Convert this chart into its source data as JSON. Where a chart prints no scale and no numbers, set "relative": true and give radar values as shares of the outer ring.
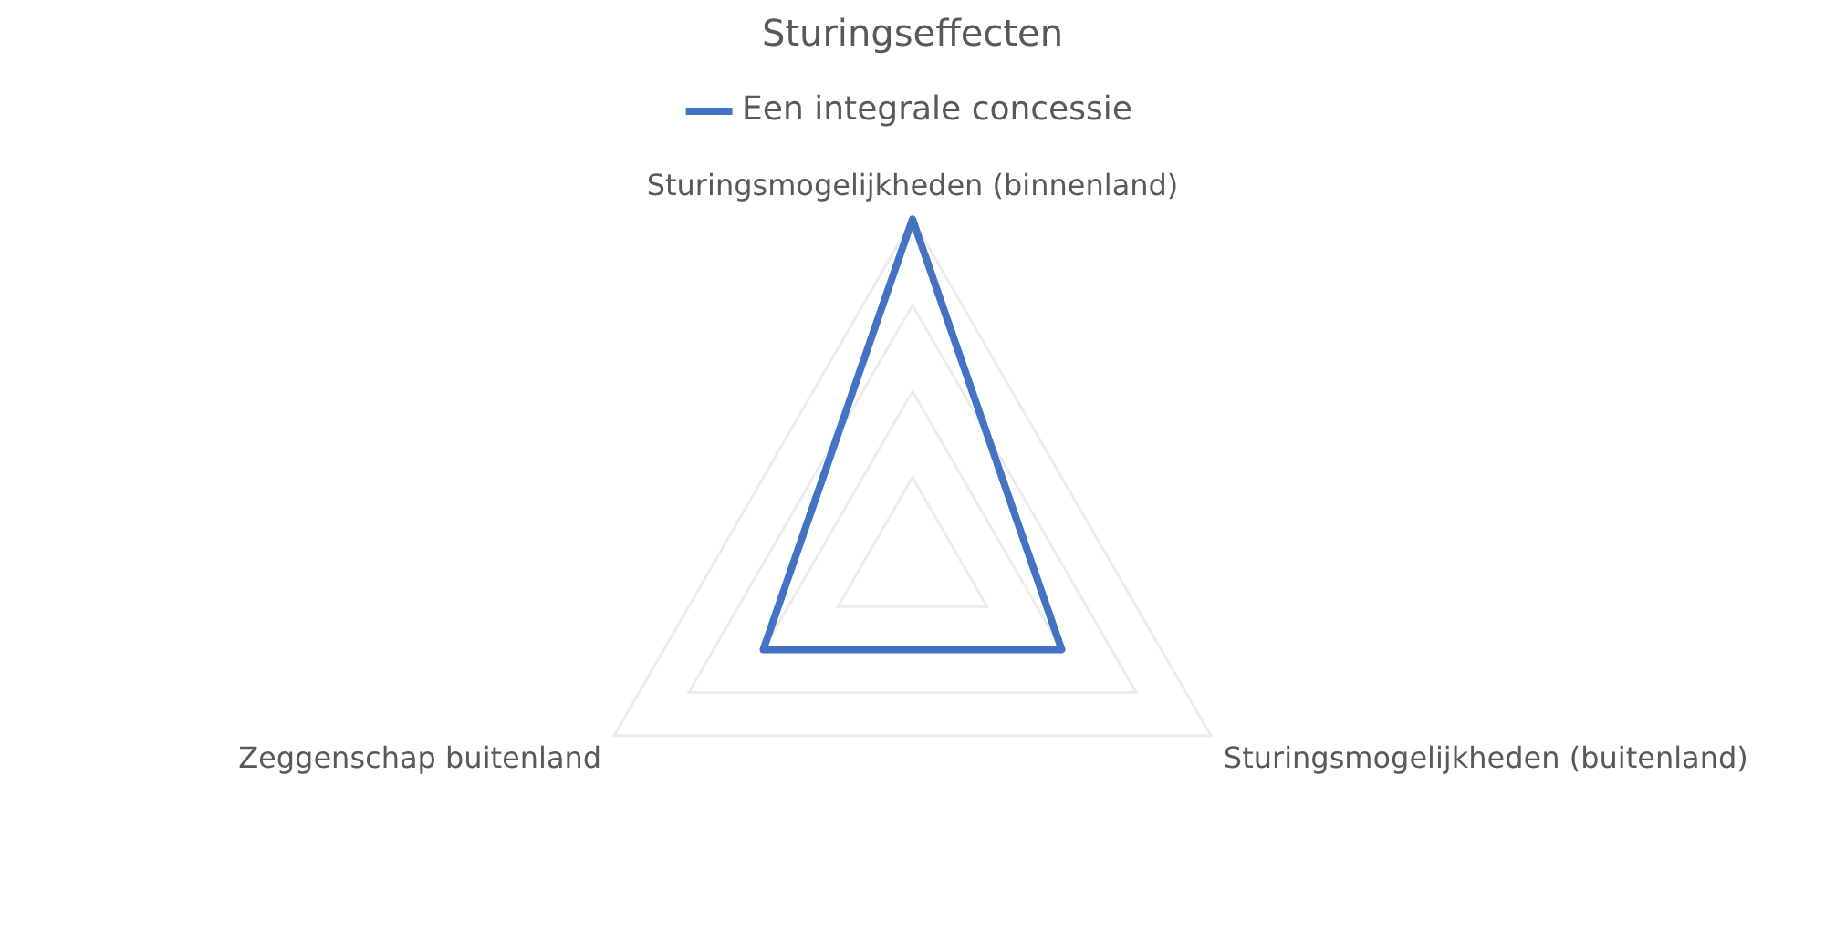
{
  "chart_data": {
    "type": "radar",
    "title": "Sturingseffecten",
    "categories": [
      "Sturingsmogelijkheden (binnenland)",
      "Sturingsmogelijkheden (buitenland)",
      "Zeggenschap buitenland"
    ],
    "series": [
      {
        "name": "Een integrale concessie",
        "color": "#4472c4",
        "values": [
          1,
          0.5,
          0.5
        ]
      }
    ],
    "relative": true,
    "legend": "top",
    "marker": "none",
    "grid": true
  }
}
